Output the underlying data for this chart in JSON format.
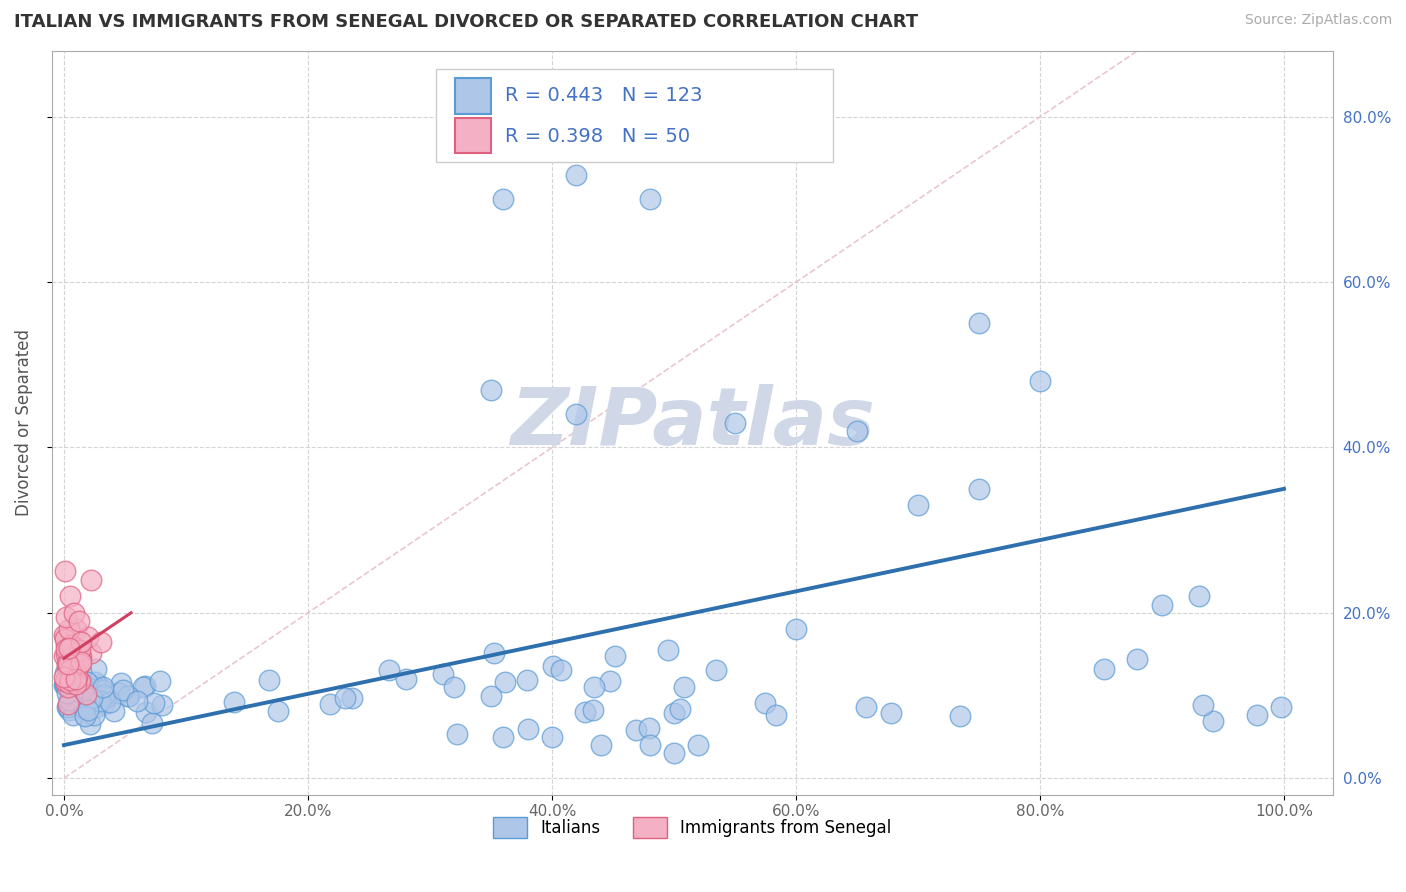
{
  "title": "ITALIAN VS IMMIGRANTS FROM SENEGAL DIVORCED OR SEPARATED CORRELATION CHART",
  "source": "Source: ZipAtlas.com",
  "ylabel": "Divorced or Separated",
  "x_ticks": [
    0.0,
    0.2,
    0.4,
    0.6,
    0.8,
    1.0
  ],
  "x_tick_labels": [
    "0.0%",
    "20.0%",
    "40.0%",
    "60.0%",
    "80.0%",
    "100.0%"
  ],
  "y_ticks": [
    0.0,
    0.2,
    0.4,
    0.6,
    0.8
  ],
  "y_tick_labels": [
    "0.0%",
    "20.0%",
    "40.0%",
    "60.0%",
    "80.0%"
  ],
  "xlim": [
    -0.01,
    1.04
  ],
  "ylim": [
    -0.02,
    0.88
  ],
  "blue_color": "#aec6e8",
  "blue_edge": "#5b9bd5",
  "pink_color": "#f4b0c4",
  "pink_edge": "#e06080",
  "blue_line_color": "#2e6fad",
  "pink_line_color": "#d04060",
  "diag_line_color": "#e8c0c8",
  "watermark": "ZIPatlas",
  "watermark_color": "#d0d8e8",
  "legend_label_1": "Italians",
  "legend_label_2": "Immigrants from Senegal",
  "R_blue": 0.443,
  "N_blue": 123,
  "R_pink": 0.398,
  "N_pink": 50,
  "tick_color": "#4472c4",
  "grid_color": "#d0d0d0"
}
